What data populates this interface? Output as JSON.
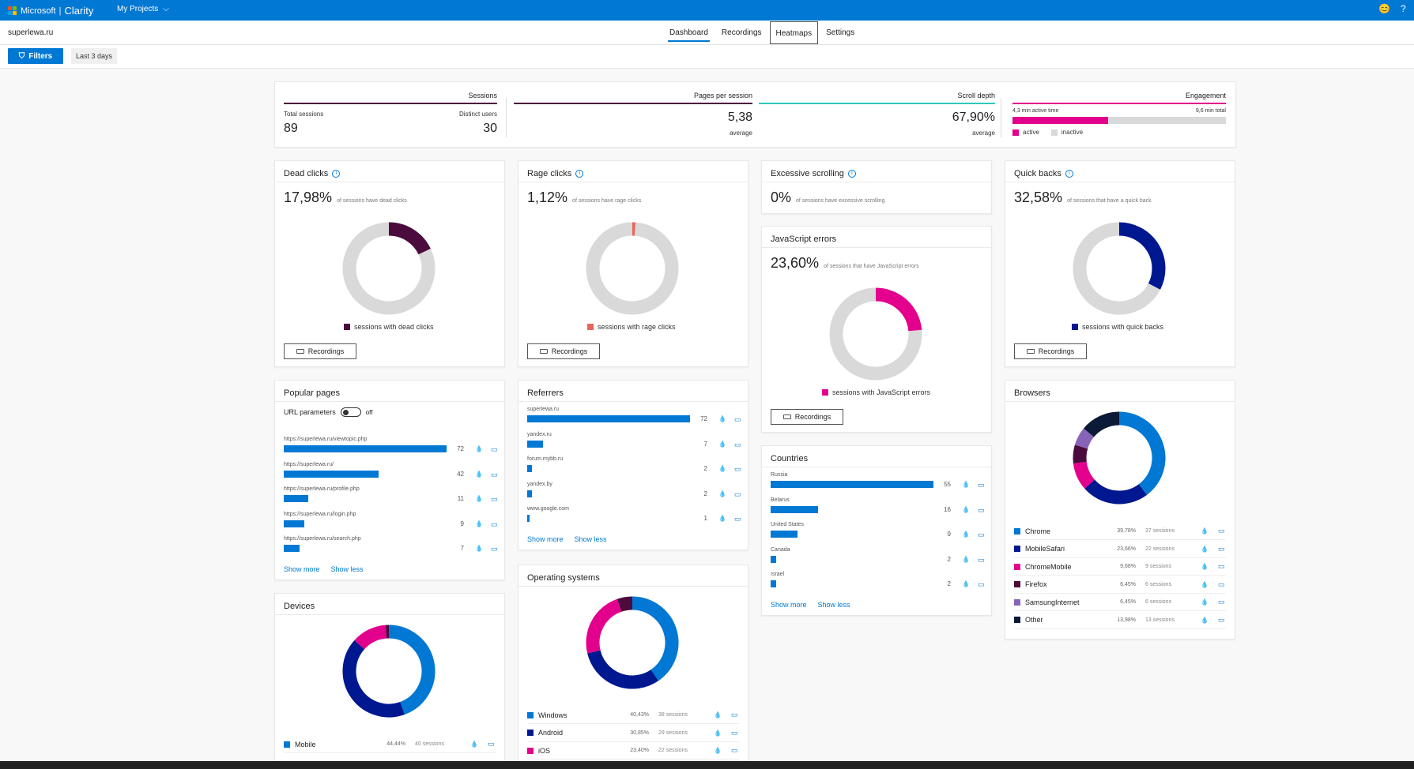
{
  "topbar": {
    "brand": "Microsoft",
    "app": "Clarity",
    "projects": "My Projects",
    "emoji_icon": "😊",
    "help_icon": "?"
  },
  "site": "superlewa.ru",
  "tabs": [
    {
      "label": "Dashboard"
    },
    {
      "label": "Recordings"
    },
    {
      "label": "Heatmaps"
    },
    {
      "label": "Settings"
    }
  ],
  "filters": {
    "label": "Filters",
    "date": "Last 3 days"
  },
  "summary": {
    "sessions": {
      "title": "Sessions",
      "total_label": "Total sessions",
      "total": "89",
      "distinct_label": "Distinct users",
      "distinct": "30"
    },
    "pages": {
      "title": "Pages per session",
      "value": "5,38",
      "sub": "average"
    },
    "scroll": {
      "title": "Scroll depth",
      "value": "67,90%",
      "sub": "average"
    },
    "engagement": {
      "title": "Engagement",
      "active_label": "4,3 min active time",
      "total_label": "9,6 min total",
      "active_fraction": 0.448,
      "legend_active": "active",
      "legend_inactive": "inactive"
    }
  },
  "dead": {
    "title": "Dead clicks",
    "pct": "17,98%",
    "desc": "of sessions have dead clicks",
    "fraction": 0.1798,
    "legend": "sessions with dead clicks",
    "button": "Recordings",
    "color": "#4b0b3d"
  },
  "rage": {
    "title": "Rage clicks",
    "pct": "1,12%",
    "desc": "of sessions have rage clicks",
    "fraction": 0.0112,
    "legend": "sessions with rage clicks",
    "button": "Recordings",
    "color": "#e8655a"
  },
  "excessive": {
    "title": "Excessive scrolling",
    "pct": "0%",
    "desc": "of sessions have excessive scrolling"
  },
  "js": {
    "title": "JavaScript errors",
    "pct": "23,60%",
    "desc": "of sessions that have JavaScript errors",
    "fraction": 0.236,
    "legend": "sessions with JavaScript errors",
    "button": "Recordings",
    "color": "#e3008c"
  },
  "quick": {
    "title": "Quick backs",
    "pct": "32,58%",
    "desc": "of sessions that have a quick back",
    "fraction": 0.3258,
    "legend": "sessions with quick backs",
    "button": "Recordings",
    "color": "#00188f"
  },
  "popular": {
    "title": "Popular pages",
    "url_params": "URL parameters",
    "toggle": "off",
    "show_more": "Show more",
    "show_less": "Show less",
    "items": [
      {
        "label": "https://superlewa.ru/viewtopic.php",
        "value": 72
      },
      {
        "label": "https://superlewa.ru/",
        "value": 42
      },
      {
        "label": "https://superlewa.ru/profile.php",
        "value": 11
      },
      {
        "label": "https://superlewa.ru/login.php",
        "value": 9
      },
      {
        "label": "https://superlewa.ru/search.php",
        "value": 7
      }
    ]
  },
  "referrers": {
    "title": "Referrers",
    "show_more": "Show more",
    "show_less": "Show less",
    "items": [
      {
        "label": "superlewa.ru",
        "value": 72
      },
      {
        "label": "yandex.ru",
        "value": 7
      },
      {
        "label": "forum.mybb.ru",
        "value": 2
      },
      {
        "label": "yandex.by",
        "value": 2
      },
      {
        "label": "www.google.com",
        "value": 1
      }
    ]
  },
  "countries": {
    "title": "Countries",
    "show_more": "Show more",
    "show_less": "Show less",
    "items": [
      {
        "label": "Russia",
        "value": 55
      },
      {
        "label": "Belarus",
        "value": 16
      },
      {
        "label": "United States",
        "value": 9
      },
      {
        "label": "Canada",
        "value": 2
      },
      {
        "label": "Israel",
        "value": 2
      }
    ]
  },
  "browsers": {
    "title": "Browsers",
    "items": [
      {
        "name": "Chrome",
        "pct": "39,78%",
        "sessions": "37 sessions",
        "fraction": 0.3978,
        "color": "#0078d4"
      },
      {
        "name": "MobileSafari",
        "pct": "23,66%",
        "sessions": "22 sessions",
        "fraction": 0.2366,
        "color": "#00188f"
      },
      {
        "name": "ChromeMobile",
        "pct": "9,68%",
        "sessions": "9 sessions",
        "fraction": 0.0968,
        "color": "#e3008c"
      },
      {
        "name": "Firefox",
        "pct": "6,45%",
        "sessions": "6 sessions",
        "fraction": 0.0645,
        "color": "#4b0b3d"
      },
      {
        "name": "SamsungInternet",
        "pct": "6,45%",
        "sessions": "6 sessions",
        "fraction": 0.0645,
        "color": "#8764b8"
      },
      {
        "name": "Other",
        "pct": "13,98%",
        "sessions": "13 sessions",
        "fraction": 0.1398,
        "color": "#0b1a36"
      }
    ]
  },
  "os": {
    "title": "Operating systems",
    "items": [
      {
        "name": "Windows",
        "pct": "40,43%",
        "sessions": "38 sessions",
        "fraction": 0.4043,
        "color": "#0078d4"
      },
      {
        "name": "Android",
        "pct": "30,85%",
        "sessions": "29 sessions",
        "fraction": 0.3085,
        "color": "#00188f"
      },
      {
        "name": "iOS",
        "pct": "23,40%",
        "sessions": "22 sessions",
        "fraction": 0.234,
        "color": "#e3008c"
      }
    ],
    "hidden_fraction": 0.0532,
    "hidden_color": "#4b0b3d"
  },
  "devices": {
    "title": "Devices",
    "items": [
      {
        "name": "Mobile",
        "pct": "44,44%",
        "sessions": "40 sessions",
        "fraction": 0.4444,
        "color": "#0078d4"
      }
    ],
    "rest": [
      {
        "fraction": 0.4222,
        "color": "#00188f"
      },
      {
        "fraction": 0.1222,
        "color": "#e3008c"
      },
      {
        "fraction": 0.0112,
        "color": "#4b0b3d"
      }
    ]
  },
  "icons": {
    "heatmap": "heatmap-icon",
    "recording": "recording-icon",
    "info": "info-icon",
    "filter": "filter-icon"
  }
}
